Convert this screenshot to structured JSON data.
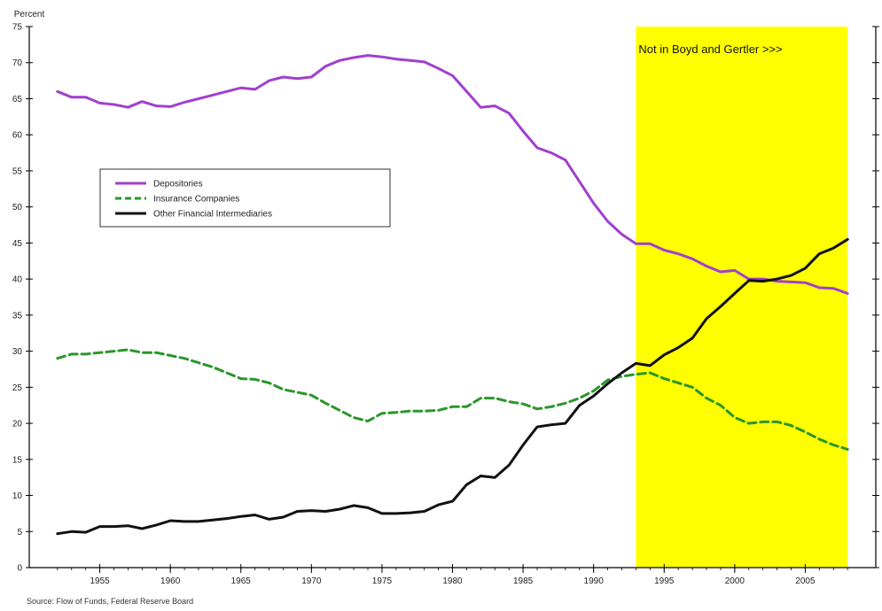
{
  "chart_data": {
    "type": "line",
    "ylabel": "Percent",
    "ylim": [
      0,
      75
    ],
    "yticks": [
      0,
      5,
      10,
      15,
      20,
      25,
      30,
      35,
      40,
      45,
      50,
      55,
      60,
      65,
      70,
      75
    ],
    "xlim": [
      1950,
      2010
    ],
    "xticks": [
      1955,
      1960,
      1965,
      1970,
      1975,
      1980,
      1985,
      1990,
      1995,
      2000,
      2005
    ],
    "x": [
      1952,
      1953,
      1954,
      1955,
      1956,
      1957,
      1958,
      1959,
      1960,
      1961,
      1962,
      1963,
      1964,
      1965,
      1966,
      1967,
      1968,
      1969,
      1970,
      1971,
      1972,
      1973,
      1974,
      1975,
      1976,
      1977,
      1978,
      1979,
      1980,
      1981,
      1982,
      1983,
      1984,
      1985,
      1986,
      1987,
      1988,
      1989,
      1990,
      1991,
      1992,
      1993,
      1994,
      1995,
      1996,
      1997,
      1998,
      1999,
      2000,
      2001,
      2002,
      2003,
      2004,
      2005,
      2006,
      2007,
      2008
    ],
    "series": [
      {
        "name": "Depositories",
        "color": "#a13fcf",
        "style": "solid",
        "values": [
          66.0,
          65.2,
          65.2,
          64.4,
          64.2,
          63.8,
          64.6,
          64.0,
          63.9,
          64.5,
          65.0,
          65.5,
          66.0,
          66.5,
          66.3,
          67.5,
          68.0,
          67.8,
          68.0,
          69.5,
          70.3,
          70.7,
          71.0,
          70.8,
          70.5,
          70.3,
          70.1,
          69.2,
          68.2,
          66.0,
          63.8,
          64.0,
          63.0,
          60.5,
          58.2,
          57.5,
          56.5,
          53.5,
          50.5,
          48.0,
          46.2,
          44.9,
          44.9,
          44.0,
          43.5,
          42.8,
          41.8,
          41.0,
          41.2,
          40.0,
          40.0,
          39.7,
          39.6,
          39.5,
          38.8,
          38.7,
          38.0
        ]
      },
      {
        "name": "Insurance Companies",
        "color": "#2a962a",
        "style": "dashed",
        "values": [
          29.0,
          29.6,
          29.6,
          29.8,
          30.0,
          30.2,
          29.8,
          29.8,
          29.4,
          29.0,
          28.4,
          27.8,
          27.0,
          26.2,
          26.1,
          25.6,
          24.7,
          24.3,
          23.9,
          22.8,
          21.8,
          20.8,
          20.3,
          21.4,
          21.5,
          21.7,
          21.7,
          21.8,
          22.3,
          22.3,
          23.5,
          23.5,
          23.0,
          22.7,
          22.0,
          22.3,
          22.8,
          23.5,
          24.5,
          26.0,
          26.5,
          26.8,
          27.0,
          26.2,
          25.6,
          25.0,
          23.5,
          22.5,
          20.8,
          20.0,
          20.2,
          20.2,
          19.7,
          18.8,
          17.8,
          17.0,
          16.4
        ]
      },
      {
        "name": "Other Financial Intermediaries",
        "color": "#111111",
        "style": "solid",
        "values": [
          4.7,
          5.0,
          4.9,
          5.7,
          5.7,
          5.8,
          5.4,
          5.9,
          6.5,
          6.4,
          6.4,
          6.6,
          6.8,
          7.1,
          7.3,
          6.7,
          7.0,
          7.8,
          7.9,
          7.8,
          8.1,
          8.6,
          8.3,
          7.5,
          7.5,
          7.6,
          7.8,
          8.7,
          9.2,
          11.5,
          12.7,
          12.5,
          14.2,
          17.0,
          19.5,
          19.8,
          20.0,
          22.5,
          23.8,
          25.5,
          27.0,
          28.3,
          28.0,
          29.5,
          30.5,
          31.8,
          34.5,
          36.2,
          38.0,
          39.8,
          39.7,
          40.0,
          40.5,
          41.5,
          43.5,
          44.3,
          45.5
        ]
      }
    ],
    "legend": {
      "placement": "upper-left",
      "border": true
    },
    "highlight": {
      "x_from": 1993,
      "x_to": 2008,
      "color": "#ffff00",
      "label": "Not in Boyd and Gertler >>>"
    },
    "source": "Source: Flow of Funds, Federal Reserve Board",
    "grid": false
  }
}
